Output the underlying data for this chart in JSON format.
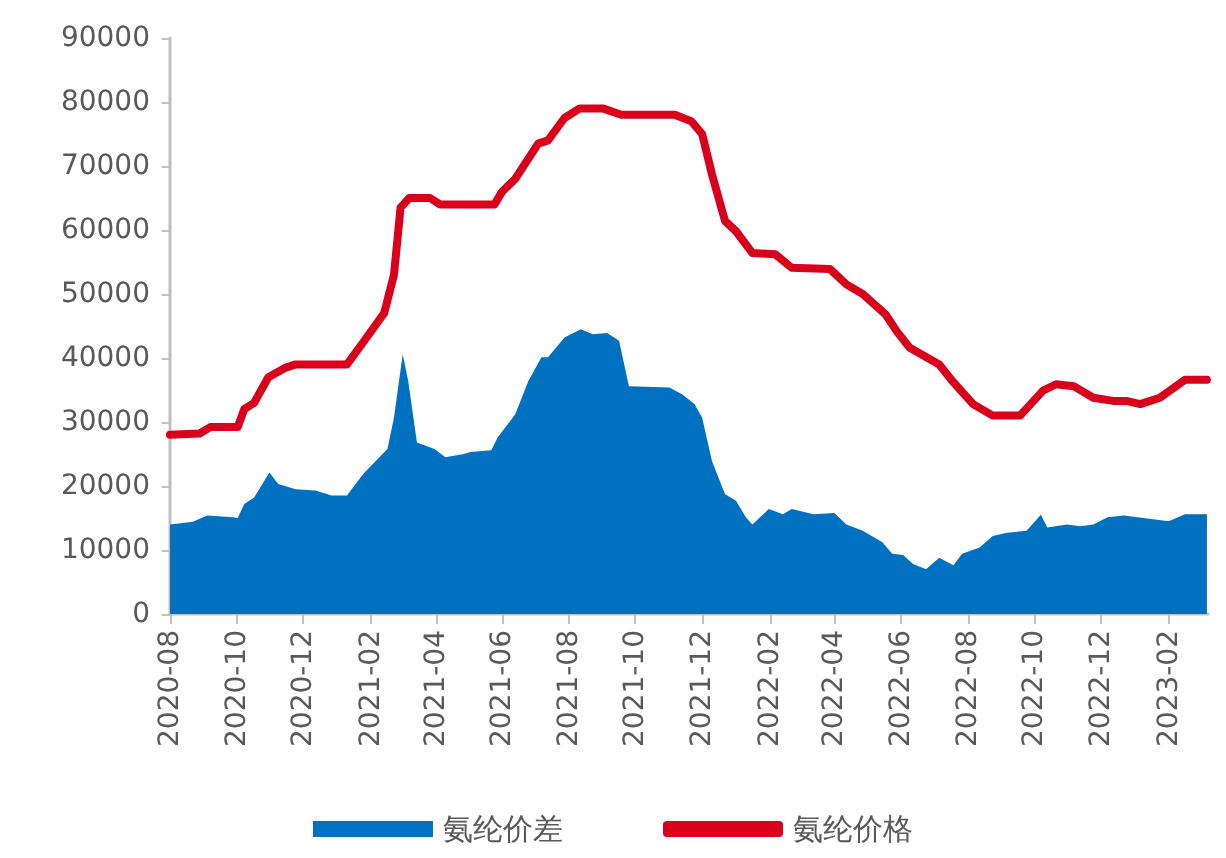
{
  "chart_data": {
    "type": "area",
    "xlim": [
      "2020-08-01",
      "2023-03-09"
    ],
    "xticks": [
      "2020-08",
      "2020-10",
      "2020-12",
      "2021-02",
      "2021-04",
      "2021-06",
      "2021-08",
      "2021-10",
      "2021-12",
      "2022-02",
      "2022-04",
      "2022-06",
      "2022-08",
      "2022-10",
      "2022-12",
      "2023-02"
    ],
    "ylim": [
      0,
      90000
    ],
    "yticks": [
      0,
      10000,
      20000,
      30000,
      40000,
      50000,
      60000,
      70000,
      80000,
      90000
    ],
    "grid": false,
    "legend": "bottom",
    "series": [
      {
        "name": "氨纶价差",
        "color": "#0070c0",
        "x": [
          "2020-08-01",
          "2020-08-22",
          "2020-09-04",
          "2020-09-28",
          "2020-10-02",
          "2020-10-08",
          "2020-10-17",
          "2020-10-31",
          "2020-11-08",
          "2020-11-24",
          "2020-12-12",
          "2020-12-27",
          "2021-01-10",
          "2021-01-25",
          "2021-02-16",
          "2021-02-22",
          "2021-03-02",
          "2021-03-07",
          "2021-03-15",
          "2021-03-31",
          "2021-04-10",
          "2021-04-27",
          "2021-05-03",
          "2021-05-22",
          "2021-05-28",
          "2021-06-13",
          "2021-06-25",
          "2021-07-07",
          "2021-07-13",
          "2021-07-28",
          "2021-08-12",
          "2021-08-23",
          "2021-09-05",
          "2021-09-16",
          "2021-09-25",
          "2021-11-01",
          "2021-11-13",
          "2021-11-24",
          "2021-12-01",
          "2021-12-10",
          "2021-12-22",
          "2022-01-01",
          "2022-01-10",
          "2022-01-16",
          "2022-01-31",
          "2022-02-13",
          "2022-02-21",
          "2022-03-13",
          "2022-04-01",
          "2022-04-12",
          "2022-04-27",
          "2022-05-15",
          "2022-05-24",
          "2022-06-03",
          "2022-06-12",
          "2022-06-24",
          "2022-07-06",
          "2022-07-19",
          "2022-07-27",
          "2022-08-12",
          "2022-08-24",
          "2022-09-06",
          "2022-09-24",
          "2022-10-07",
          "2022-10-13",
          "2022-10-31",
          "2022-11-12",
          "2022-11-24",
          "2022-12-07",
          "2022-12-22",
          "2023-01-09",
          "2023-02-01",
          "2023-02-16",
          "2023-03-08"
        ],
        "values": [
          14000,
          14400,
          15400,
          15100,
          15000,
          17200,
          18200,
          22100,
          20300,
          19500,
          19300,
          18500,
          18500,
          21900,
          25800,
          30700,
          40600,
          36400,
          26800,
          25800,
          24500,
          25000,
          25300,
          25600,
          27600,
          31200,
          36400,
          40100,
          40100,
          43200,
          44500,
          43700,
          43900,
          42700,
          35600,
          35400,
          34300,
          32800,
          30700,
          23900,
          18700,
          17700,
          15100,
          14000,
          16400,
          15600,
          16400,
          15600,
          15800,
          14000,
          13000,
          11200,
          9400,
          9200,
          7800,
          7000,
          8800,
          7600,
          9400,
          10400,
          12200,
          12700,
          13000,
          15500,
          13500,
          14000,
          13700,
          14000,
          15100,
          15400,
          15000,
          14500,
          15600,
          15600
        ]
      },
      {
        "name": "氨纶价格",
        "type": "line",
        "color": "#d9001b",
        "marker": "none",
        "line_style": "solid",
        "x": [
          "2020-08-01",
          "2020-08-28",
          "2020-09-07",
          "2020-10-02",
          "2020-10-08",
          "2020-10-17",
          "2020-10-30",
          "2020-11-15",
          "2020-11-24",
          "2021-01-10",
          "2021-01-25",
          "2021-02-13",
          "2021-02-22",
          "2021-02-28",
          "2021-03-08",
          "2021-03-27",
          "2021-04-05",
          "2021-05-25",
          "2021-06-01",
          "2021-06-13",
          "2021-07-04",
          "2021-07-13",
          "2021-07-28",
          "2021-08-11",
          "2021-09-01",
          "2021-09-18",
          "2021-11-06",
          "2021-11-21",
          "2021-12-01",
          "2021-12-10",
          "2021-12-22",
          "2022-01-01",
          "2022-01-16",
          "2022-02-06",
          "2022-02-21",
          "2022-03-28",
          "2022-04-12",
          "2022-04-27",
          "2022-05-18",
          "2022-05-28",
          "2022-06-09",
          "2022-07-06",
          "2022-07-18",
          "2022-08-06",
          "2022-08-24",
          "2022-09-18",
          "2022-10-09",
          "2022-10-21",
          "2022-11-06",
          "2022-11-24",
          "2022-12-12",
          "2022-12-24",
          "2023-01-06",
          "2023-01-24",
          "2023-02-16",
          "2023-03-08"
        ],
        "values": [
          28000,
          28200,
          29200,
          29200,
          32000,
          33000,
          37000,
          38500,
          39000,
          39000,
          42500,
          47000,
          53000,
          63500,
          65000,
          65000,
          64000,
          64000,
          66000,
          68000,
          73500,
          74000,
          77500,
          79000,
          79000,
          78000,
          78000,
          77000,
          75000,
          68700,
          61400,
          59800,
          56400,
          56200,
          54100,
          53900,
          51500,
          50000,
          46800,
          44200,
          41600,
          39000,
          36400,
          32800,
          31000,
          31000,
          34900,
          35900,
          35600,
          33800,
          33300,
          33300,
          32800,
          33800,
          36600,
          36600
        ]
      }
    ]
  }
}
